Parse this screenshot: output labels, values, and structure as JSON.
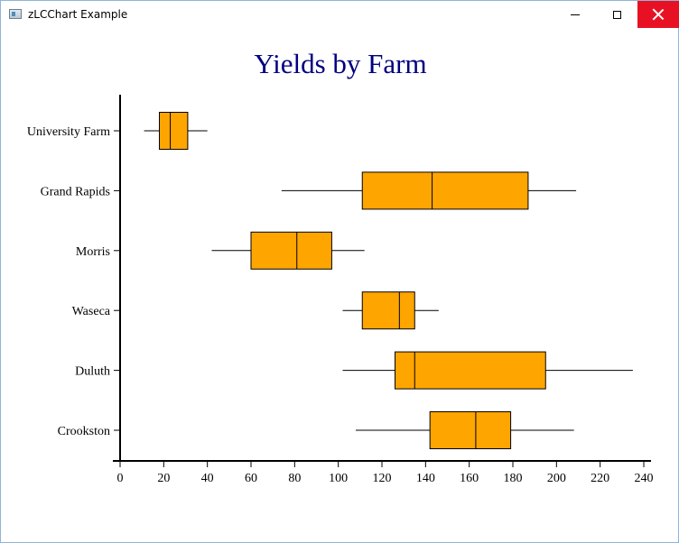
{
  "window": {
    "title": "zLCChart Example",
    "close_color": "#e81123"
  },
  "colors": {
    "title": "#000080",
    "box_fill": "#ffa500",
    "stroke": "#000000"
  },
  "chart_data": {
    "type": "boxplot",
    "orientation": "horizontal",
    "title": "Yields by Farm",
    "xlabel": "",
    "ylabel": "",
    "xlim": [
      0,
      240
    ],
    "x_ticks": [
      0,
      20,
      40,
      60,
      80,
      100,
      120,
      140,
      160,
      180,
      200,
      220,
      240
    ],
    "grid": false,
    "categories": [
      "University Farm",
      "Grand Rapids",
      "Morris",
      "Waseca",
      "Duluth",
      "Crookston"
    ],
    "boxes": [
      {
        "category": "University Farm",
        "min": 11,
        "q1": 18,
        "median": 23,
        "q3": 31,
        "max": 40
      },
      {
        "category": "Grand Rapids",
        "min": 74,
        "q1": 111,
        "median": 143,
        "q3": 187,
        "max": 209
      },
      {
        "category": "Morris",
        "min": 42,
        "q1": 60,
        "median": 81,
        "q3": 97,
        "max": 112
      },
      {
        "category": "Waseca",
        "min": 102,
        "q1": 111,
        "median": 128,
        "q3": 135,
        "max": 146
      },
      {
        "category": "Duluth",
        "min": 102,
        "q1": 126,
        "median": 135,
        "q3": 195,
        "max": 235
      },
      {
        "category": "Crookston",
        "min": 108,
        "q1": 142,
        "median": 163,
        "q3": 179,
        "max": 208
      }
    ]
  }
}
